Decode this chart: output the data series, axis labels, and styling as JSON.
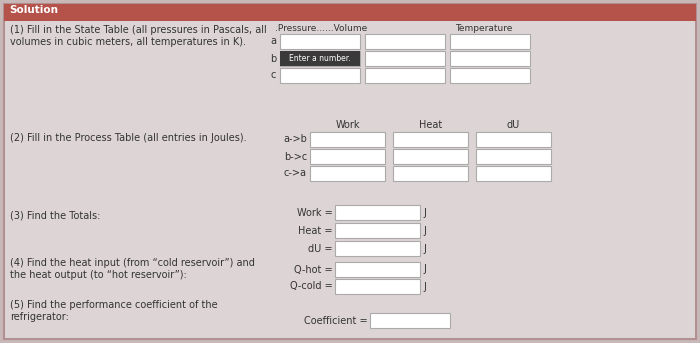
{
  "title": "Solution",
  "title_bg": "#b5524a",
  "title_color": "white",
  "outer_bg": "#c8b8b8",
  "inner_bg": "#ddd5d5",
  "box_color": "white",
  "box_edge": "#aaaaaa",
  "text_color": "#333333",
  "section1_label": "(1) Fill in the State Table (all pressures in Pascals, all\nvolumes in cubic meters, all temperatures in K).",
  "section2_label": "(2) Fill in the Process Table (all entries in Joules).",
  "section3_label": "(3) Find the Totals:",
  "section4_label": "(4) Find the heat input (from “cold reservoir”) and\nthe heat output (to “hot reservoir”):",
  "section5_label": "(5) Find the performance coefficient of the\nrefrigerator:",
  "state_rows": [
    "a",
    "b",
    "c"
  ],
  "process_col_headers": [
    "Work",
    "Heat",
    "dU"
  ],
  "process_rows": [
    "a->b",
    "b->c",
    "c->a"
  ],
  "totals_labels": [
    "Work =",
    "Heat =",
    "dU ="
  ],
  "totals_units": [
    "J",
    "J",
    "J"
  ],
  "heat_labels": [
    "Q-hot =",
    "Q-cold ="
  ],
  "heat_units": [
    "J",
    "J"
  ],
  "coeff_label": "Coefficient =",
  "tooltip_text": "Enter a number.",
  "tooltip_bg": "#3a3a3a",
  "tooltip_color": "white",
  "state_hdr_pressure": ".Pressure......Volume",
  "state_hdr_temperature": "Temperature"
}
